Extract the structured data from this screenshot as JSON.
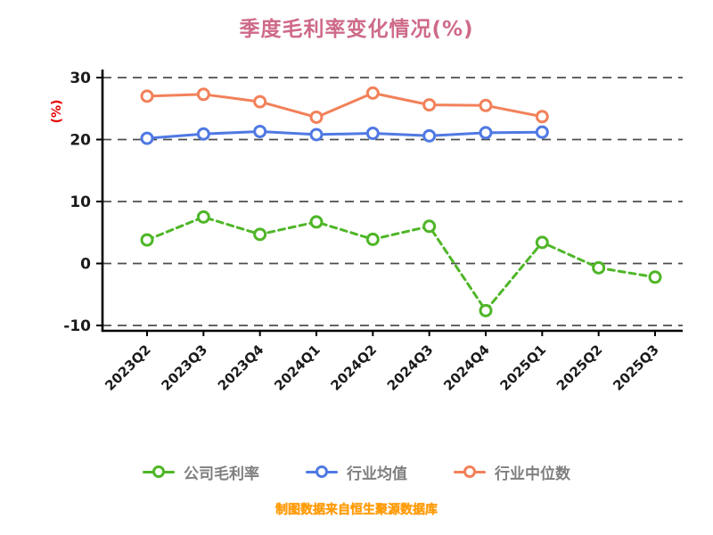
{
  "chart_data": {
    "type": "line",
    "title": "季度毛利率变化情况(%)",
    "ylabel": "(%)",
    "ylabel_color": "#e60000",
    "ylim": [
      -10,
      30
    ],
    "yticks": [
      30,
      20,
      10,
      0,
      -10
    ],
    "grid": "dashed-horizontal",
    "legend_position": "bottom",
    "categories": [
      "2023Q2",
      "2023Q3",
      "2023Q4",
      "2024Q1",
      "2024Q2",
      "2024Q3",
      "2024Q4",
      "2025Q1",
      "2025Q2",
      "2025Q3"
    ],
    "series": [
      {
        "name": "公司毛利率",
        "color": "#4fb628",
        "dashed": true,
        "values": [
          3.8,
          7.5,
          4.7,
          6.7,
          3.9,
          6.0,
          -7.6,
          3.4,
          -0.7,
          -2.2
        ]
      },
      {
        "name": "行业均值",
        "color": "#5079e3",
        "dashed": false,
        "values": [
          20.2,
          20.9,
          21.3,
          20.8,
          21.0,
          20.6,
          21.1,
          21.2,
          null,
          null
        ]
      },
      {
        "name": "行业中位数",
        "color": "#f2815a",
        "dashed": false,
        "values": [
          27.0,
          27.3,
          26.1,
          23.6,
          27.5,
          25.6,
          25.5,
          23.7,
          null,
          null
        ]
      }
    ],
    "source_note": "制图数据来自恒生聚源数据库"
  }
}
